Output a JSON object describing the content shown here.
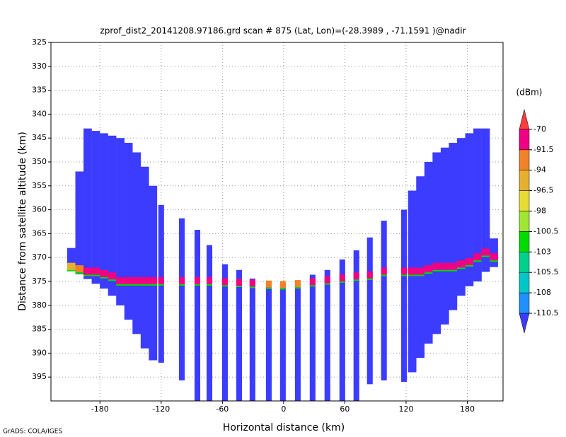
{
  "chart_data": {
    "type": "profile",
    "title": "zprof_dist2_20141208.97186.grd  scan # 875  (Lat, Lon)=(-28.3989 , -71.1591 )@nadir",
    "xlabel": "Horizontal distance (km)",
    "ylabel": "Distance from satellite altitude (km)",
    "footer": "GrADS: COLA/IGES",
    "xlim": [
      -228,
      215
    ],
    "xticks": [
      -180,
      -120,
      -60,
      0,
      60,
      120,
      180
    ],
    "ylim": [
      325,
      400
    ],
    "yticks": [
      325,
      330,
      335,
      340,
      345,
      350,
      355,
      360,
      365,
      370,
      375,
      380,
      385,
      390,
      395
    ],
    "y_inverted": true,
    "grid": true,
    "colorbar_unit": "(dBm)",
    "levels": [
      -110.5,
      -108,
      -105.5,
      -103,
      -100.5,
      -98,
      -96.5,
      -94,
      -91.5,
      -70
    ],
    "colors": [
      "#3c3cff",
      "#1e90ff",
      "#00c8c8",
      "#00d28c",
      "#00dc00",
      "#a0e632",
      "#e6dc32",
      "#e6af2d",
      "#f08228",
      "#f00082",
      "#fa3c3c"
    ],
    "columns": {
      "x": [
        -208,
        -200,
        -192,
        -184,
        -176,
        -168,
        -160,
        -152,
        -144,
        -136,
        -128,
        -120,
        -99.7,
        -84.5,
        -72.7,
        -57.5,
        -43.6,
        -30.5,
        -14.5,
        -0.7,
        13.9,
        28.4,
        42.9,
        57.5,
        71.3,
        84.5,
        98.3,
        118,
        126,
        134,
        142,
        150,
        158,
        166,
        174,
        182,
        190,
        198,
        206
      ],
      "top": [
        368,
        352,
        343,
        343.5,
        344,
        344.5,
        345,
        346,
        348,
        351,
        355,
        359,
        361.8,
        364.2,
        367.4,
        371.4,
        372.6,
        374.4,
        375.1,
        375.5,
        375.1,
        373.6,
        372.6,
        370.4,
        368.5,
        365.8,
        362.3,
        360,
        356,
        353,
        350,
        348,
        347,
        346,
        345,
        344,
        343,
        343,
        366
      ],
      "bottom": [
        372,
        373.5,
        374.5,
        375.5,
        376.5,
        378,
        380,
        383,
        386,
        389,
        391.5,
        392,
        395.7,
        400,
        400,
        400,
        400,
        400,
        400,
        400,
        400,
        400,
        400,
        400,
        400,
        396.5,
        395.7,
        396,
        394,
        391,
        388,
        386,
        384,
        381,
        378,
        376,
        375,
        373,
        372
      ],
      "surface": [
        372,
        372.5,
        373,
        373,
        373.5,
        374,
        375,
        375,
        375,
        375,
        375,
        375,
        375,
        375,
        375,
        375.2,
        375.3,
        375.5,
        375.7,
        375.8,
        375.6,
        375.2,
        374.8,
        374.4,
        374,
        373.8,
        373,
        373,
        373,
        373,
        372.5,
        372,
        372,
        372,
        371.5,
        371,
        370,
        369,
        370
      ],
      "surface_dbm": [
        -96,
        -92,
        -88,
        -85,
        -85,
        -85,
        -84,
        -84,
        -84,
        -84,
        -85,
        -86,
        -88,
        -86,
        -86,
        -87,
        -88,
        -90,
        -92,
        -93,
        -92,
        -89,
        -87,
        -86,
        -86,
        -87,
        -85,
        -84,
        -84,
        -84,
        -83,
        -83,
        -83,
        -84,
        -84,
        -85,
        -84,
        -84,
        -84
      ]
    }
  }
}
